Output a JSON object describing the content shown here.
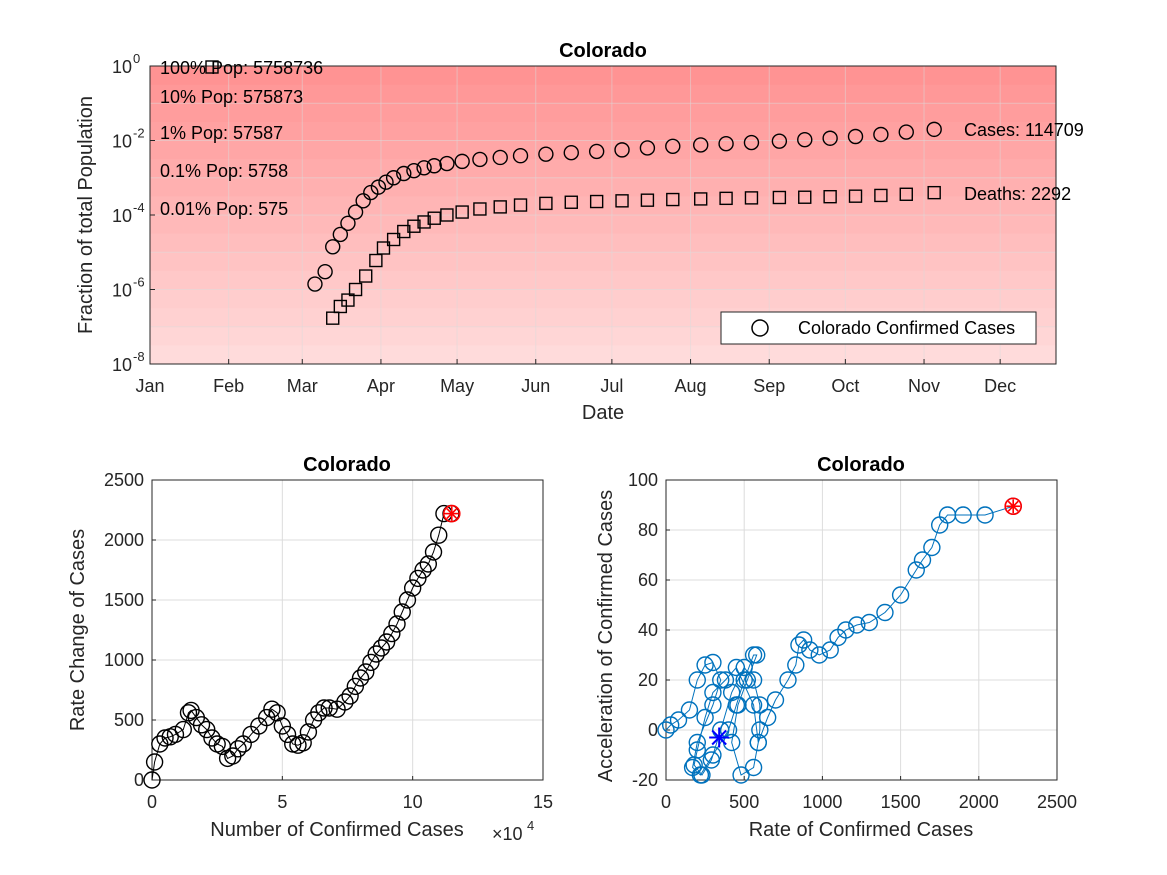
{
  "chart_data": [
    {
      "type": "scatter",
      "title": "Colorado",
      "xlabel": "Date",
      "ylabel": "Fraction of total Population",
      "yscale": "log",
      "ylim": [
        1e-08,
        1
      ],
      "x_tick_labels": [
        "Jan",
        "Feb",
        "Mar",
        "Apr",
        "May",
        "Jun",
        "Jul",
        "Aug",
        "Sep",
        "Oct",
        "Nov",
        "Dec"
      ],
      "y_tick_exponents": [
        0,
        -2,
        -4,
        -6,
        -8
      ],
      "y_tick_base": "10",
      "population_bands": [
        {
          "label": "100% Pop: 5758736",
          "fraction": 1
        },
        {
          "label": "10% Pop: 575873",
          "fraction": 0.1
        },
        {
          "label": "1% Pop: 57587",
          "fraction": 0.01
        },
        {
          "label": "0.1% Pop: 5758",
          "fraction": 0.001
        },
        {
          "label": "0.01% Pop: 575",
          "fraction": 0.0001
        }
      ],
      "end_labels": {
        "cases": "Cases: 114709",
        "deaths": "Deaths: 2292"
      },
      "legend": {
        "entry": "Colorado Confirmed Cases",
        "location": "bottom-right"
      },
      "series": [
        {
          "name": "Colorado Confirmed Cases",
          "marker": "circle",
          "color": "#000000",
          "points": [
            [
              "2020-03-06",
              1.4e-06
            ],
            [
              "2020-03-10",
              3e-06
            ],
            [
              "2020-03-13",
              1.4e-05
            ],
            [
              "2020-03-16",
              3e-05
            ],
            [
              "2020-03-19",
              6e-05
            ],
            [
              "2020-03-22",
              0.00012
            ],
            [
              "2020-03-25",
              0.00024
            ],
            [
              "2020-03-28",
              0.0004
            ],
            [
              "2020-03-31",
              0.00056
            ],
            [
              "2020-04-03",
              0.00076
            ],
            [
              "2020-04-06",
              0.001
            ],
            [
              "2020-04-10",
              0.0013
            ],
            [
              "2020-04-14",
              0.00155
            ],
            [
              "2020-04-18",
              0.00185
            ],
            [
              "2020-04-22",
              0.0021
            ],
            [
              "2020-04-27",
              0.0024
            ],
            [
              "2020-05-03",
              0.00275
            ],
            [
              "2020-05-10",
              0.0031
            ],
            [
              "2020-05-18",
              0.0035
            ],
            [
              "2020-05-26",
              0.0039
            ],
            [
              "2020-06-05",
              0.0043
            ],
            [
              "2020-06-15",
              0.0047
            ],
            [
              "2020-06-25",
              0.0051
            ],
            [
              "2020-07-05",
              0.0056
            ],
            [
              "2020-07-15",
              0.0063
            ],
            [
              "2020-07-25",
              0.007
            ],
            [
              "2020-08-05",
              0.0076
            ],
            [
              "2020-08-15",
              0.0082
            ],
            [
              "2020-08-25",
              0.0088
            ],
            [
              "2020-09-05",
              0.0096
            ],
            [
              "2020-09-15",
              0.0105
            ],
            [
              "2020-09-25",
              0.0115
            ],
            [
              "2020-10-05",
              0.0128
            ],
            [
              "2020-10-15",
              0.0145
            ],
            [
              "2020-10-25",
              0.0168
            ],
            [
              "2020-11-05",
              0.0199
            ]
          ]
        },
        {
          "name": "Deaths",
          "marker": "square",
          "color": "#000000",
          "points": [
            [
              "2020-03-13",
              1.7e-07
            ],
            [
              "2020-03-16",
              3.5e-07
            ],
            [
              "2020-03-19",
              5.2e-07
            ],
            [
              "2020-03-22",
              1e-06
            ],
            [
              "2020-03-26",
              2.3e-06
            ],
            [
              "2020-03-30",
              6e-06
            ],
            [
              "2020-04-02",
              1.3e-05
            ],
            [
              "2020-04-06",
              2.2e-05
            ],
            [
              "2020-04-10",
              3.6e-05
            ],
            [
              "2020-04-14",
              5e-05
            ],
            [
              "2020-04-18",
              6.5e-05
            ],
            [
              "2020-04-22",
              8.2e-05
            ],
            [
              "2020-04-27",
              0.0001
            ],
            [
              "2020-05-03",
              0.00012
            ],
            [
              "2020-05-10",
              0.000145
            ],
            [
              "2020-05-18",
              0.000165
            ],
            [
              "2020-05-26",
              0.000185
            ],
            [
              "2020-06-05",
              0.000205
            ],
            [
              "2020-06-15",
              0.00022
            ],
            [
              "2020-06-25",
              0.00023
            ],
            [
              "2020-07-05",
              0.00024
            ],
            [
              "2020-07-15",
              0.00025
            ],
            [
              "2020-07-25",
              0.00026
            ],
            [
              "2020-08-05",
              0.00027
            ],
            [
              "2020-08-15",
              0.00028
            ],
            [
              "2020-08-25",
              0.000288
            ],
            [
              "2020-09-05",
              0.000295
            ],
            [
              "2020-09-15",
              0.0003
            ],
            [
              "2020-09-25",
              0.00031
            ],
            [
              "2020-10-05",
              0.00032
            ],
            [
              "2020-10-15",
              0.000335
            ],
            [
              "2020-10-25",
              0.00036
            ],
            [
              "2020-11-05",
              0.000398
            ]
          ]
        }
      ]
    },
    {
      "type": "scatter",
      "title": "Colorado",
      "xlabel": "Number of Confirmed Cases",
      "x_exponent_label": "×10",
      "x_exponent_power": "4",
      "ylabel": "Rate Change of Cases",
      "xlim": [
        0,
        150000
      ],
      "ylim": [
        0,
        2500
      ],
      "x_ticks": [
        0,
        5,
        10,
        15
      ],
      "y_ticks": [
        0,
        500,
        1000,
        1500,
        2000,
        2500
      ],
      "marker_color": "#000000",
      "highlight_color": "#ff0000",
      "series": [
        {
          "name": "",
          "x": [
            0,
            1000,
            3000,
            5000,
            7000,
            9000,
            12000,
            14000,
            15000,
            17000,
            19000,
            21000,
            23000,
            25000,
            27000,
            29000,
            31000,
            33000,
            35000,
            38000,
            41000,
            44000,
            46000,
            48000,
            50000,
            52000,
            54000,
            56000,
            58000,
            60000,
            62000,
            64000,
            66000,
            68000,
            71000,
            74000,
            76000,
            78000,
            80000,
            82000,
            84000,
            86000,
            88000,
            90000,
            92000,
            94000,
            96000,
            98000,
            100000,
            102000,
            104000,
            106000,
            108000,
            110000,
            112000,
            114709
          ],
          "y": [
            0,
            150,
            300,
            350,
            360,
            380,
            420,
            560,
            580,
            520,
            460,
            420,
            350,
            300,
            280,
            180,
            200,
            260,
            300,
            380,
            450,
            520,
            590,
            560,
            450,
            380,
            300,
            290,
            310,
            400,
            500,
            560,
            600,
            600,
            590,
            650,
            700,
            780,
            850,
            900,
            980,
            1050,
            1100,
            1150,
            1220,
            1300,
            1400,
            1500,
            1600,
            1680,
            1750,
            1800,
            1900,
            2040,
            2220,
            2220
          ]
        }
      ],
      "highlight_point": [
        115000,
        2220
      ]
    },
    {
      "type": "scatter",
      "title": "Colorado",
      "xlabel": "Rate of Confirmed Cases",
      "ylabel": "Acceleration of Confirmed Cases",
      "xlim": [
        0,
        2500
      ],
      "ylim": [
        -20,
        100
      ],
      "x_ticks": [
        0,
        500,
        1000,
        1500,
        2000,
        2500
      ],
      "y_ticks": [
        -20,
        0,
        20,
        40,
        60,
        80,
        100
      ],
      "marker_color": "#0072bd",
      "centroid_color": "#0000ff",
      "highlight_color": "#ff0000",
      "series": [
        {
          "name": "",
          "x": [
            0,
            30,
            80,
            150,
            200,
            250,
            300,
            350,
            300,
            200,
            170,
            220,
            300,
            400,
            450,
            500,
            560,
            580,
            520,
            460,
            420,
            480,
            560,
            590,
            560,
            450,
            380,
            300,
            250,
            200,
            180,
            230,
            290,
            350,
            420,
            500,
            560,
            600,
            600,
            590,
            650,
            700,
            780,
            830,
            850,
            880,
            920,
            980,
            1050,
            1100,
            1150,
            1220,
            1300,
            1400,
            1500,
            1600,
            1640,
            1700,
            1750,
            1800,
            1900,
            2040,
            2220
          ],
          "y": [
            0,
            2,
            4,
            8,
            20,
            26,
            27,
            20,
            10,
            -5,
            -15,
            -18,
            -10,
            0,
            10,
            20,
            30,
            30,
            20,
            10,
            -5,
            -18,
            -15,
            -5,
            10,
            25,
            20,
            15,
            5,
            -8,
            -14,
            -18,
            -12,
            0,
            15,
            25,
            20,
            10,
            0,
            -5,
            5,
            12,
            20,
            26,
            34,
            36,
            32,
            30,
            32,
            37,
            40,
            42,
            43,
            47,
            54,
            64,
            68,
            73,
            82,
            86,
            86,
            86,
            89.5
          ]
        }
      ],
      "centroid": [
        340,
        -3
      ],
      "highlight_point": [
        2220,
        89.5
      ]
    }
  ]
}
